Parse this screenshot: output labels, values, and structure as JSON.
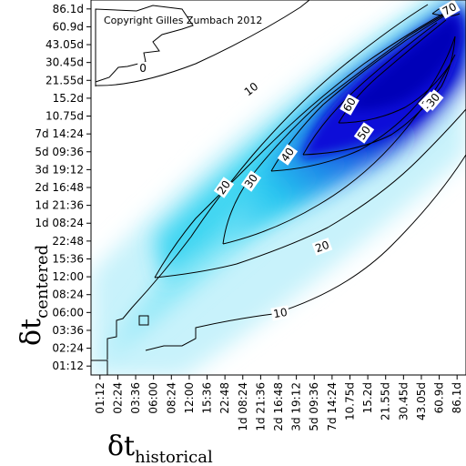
{
  "chart_data": {
    "type": "heatmap",
    "copyright": "Copyright Gilles Zumbach 2012",
    "xlabel": {
      "symbol": "δt",
      "subscript": "historical"
    },
    "ylabel": {
      "symbol": "δt",
      "subscript": "centered"
    },
    "x_ticks": [
      "01:12",
      "02:24",
      "03:36",
      "06:00",
      "08:24",
      "12:00",
      "15:36",
      "22:48",
      "1d 08:24",
      "1d 21:36",
      "2d 16:48",
      "3d 19:12",
      "5d 09:36",
      "7d 14:24",
      "10.75d",
      "15.2d",
      "21.55d",
      "30.45d",
      "43.05d",
      "60.9d",
      "86.1d"
    ],
    "y_ticks": [
      "01:12",
      "02:24",
      "03:36",
      "06:00",
      "08:24",
      "12:00",
      "15:36",
      "22:48",
      "1d 08:24",
      "1d 21:36",
      "2d 16:48",
      "3d 19:12",
      "5d 09:36",
      "7d 14:24",
      "10.75d",
      "15.2d",
      "21.55d",
      "30.45d",
      "43.05d",
      "60.9d",
      "86.1d"
    ],
    "contour_levels": [
      0,
      10,
      20,
      30,
      40,
      50,
      60,
      70
    ],
    "contour_labels": [
      {
        "text": "0"
      },
      {
        "text": "10"
      },
      {
        "text": "10"
      },
      {
        "text": "10"
      },
      {
        "text": "20"
      },
      {
        "text": "20"
      },
      {
        "text": "30"
      },
      {
        "text": "30"
      },
      {
        "text": "40"
      },
      {
        "text": "50"
      },
      {
        "text": "60"
      },
      {
        "text": "70"
      }
    ],
    "colors": {
      "low": "#ffffff",
      "mid": "#00c8f0",
      "high": "#0000d0"
    }
  }
}
